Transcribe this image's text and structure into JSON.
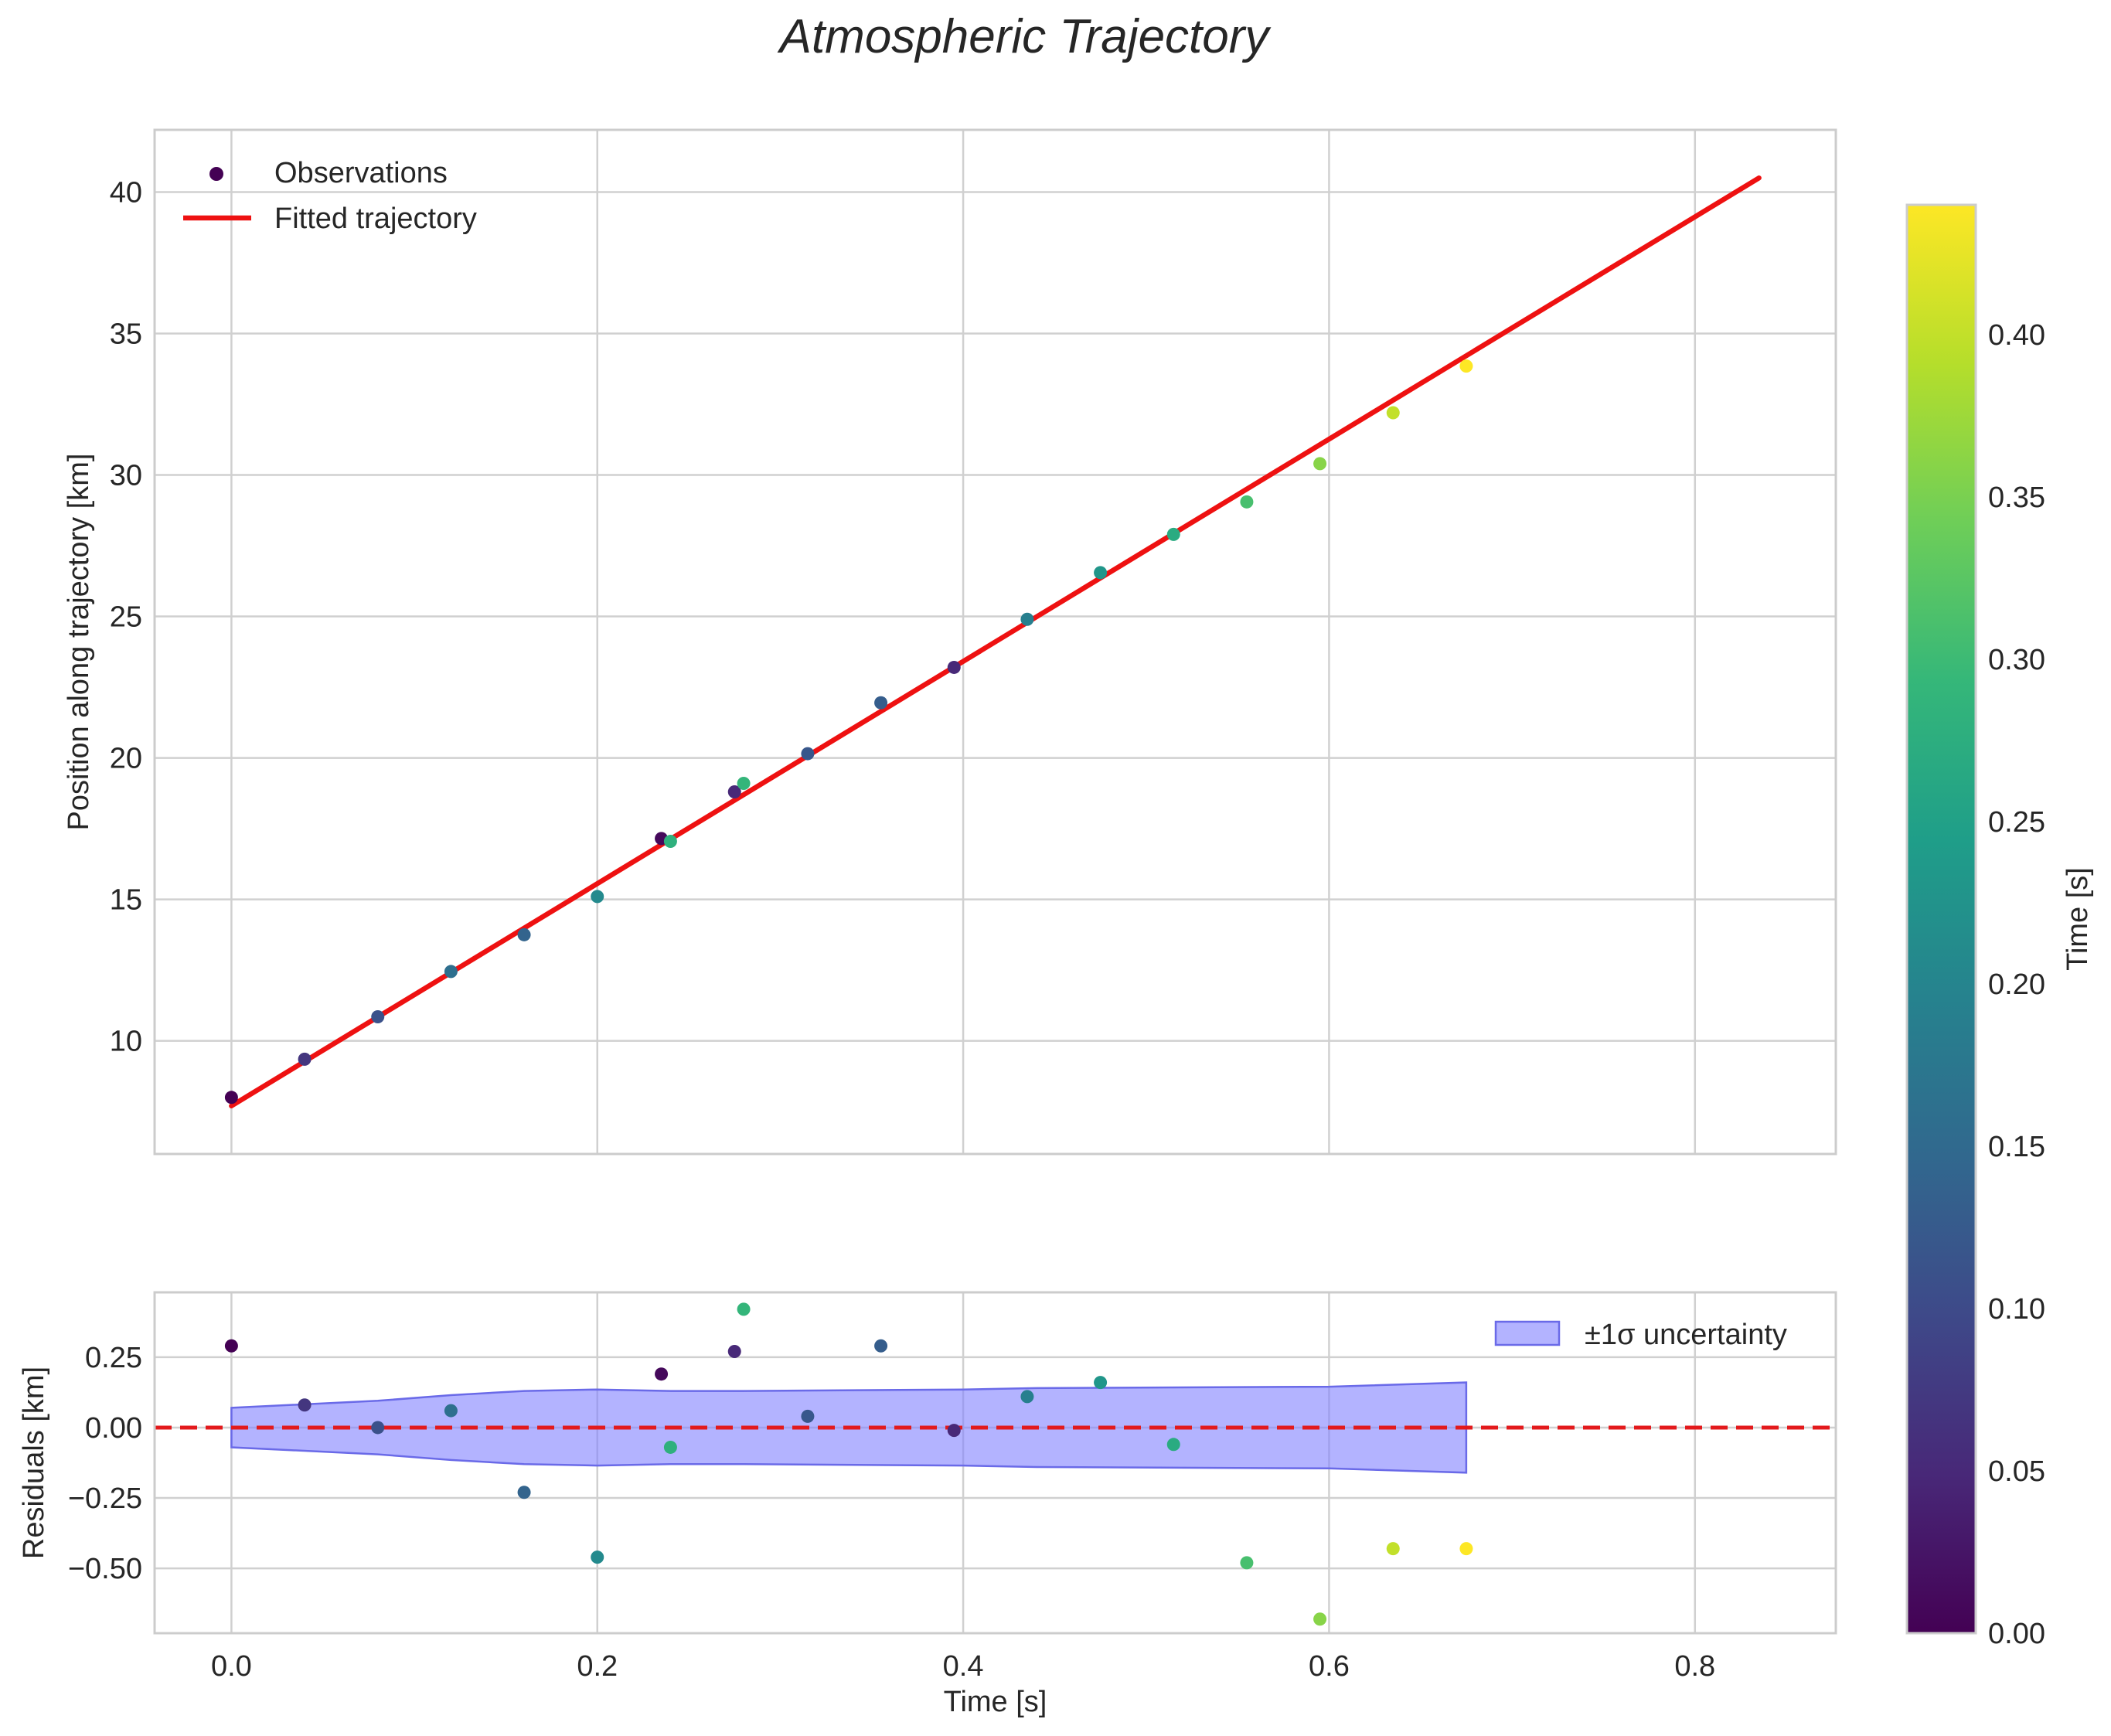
{
  "chart_data": {
    "title": "Atmospheric Trajectory",
    "type": "scatter",
    "main": {
      "ylabel": "Position along trajectory [km]",
      "xlim": [
        -0.042,
        0.877
      ],
      "ylim": [
        6.0,
        42.2
      ],
      "xticks": [
        0.0,
        0.2,
        0.4,
        0.6,
        0.8
      ],
      "yticks": [
        10,
        15,
        20,
        25,
        30,
        35,
        40
      ],
      "ytick_labels": [
        "10",
        "15",
        "20",
        "25",
        "30",
        "35",
        "40"
      ],
      "legend": {
        "position": "top-left",
        "observations_label": "Observations",
        "fit_label": "Fitted trajectory"
      },
      "observations": [
        {
          "t": 0.0,
          "y": 8.0,
          "c": 0.0
        },
        {
          "t": 0.04,
          "y": 9.35,
          "c": 0.07
        },
        {
          "t": 0.08,
          "y": 10.85,
          "c": 0.11
        },
        {
          "t": 0.12,
          "y": 12.45,
          "c": 0.16
        },
        {
          "t": 0.16,
          "y": 13.75,
          "c": 0.14
        },
        {
          "t": 0.2,
          "y": 15.1,
          "c": 0.21
        },
        {
          "t": 0.235,
          "y": 17.15,
          "c": 0.01
        },
        {
          "t": 0.24,
          "y": 17.05,
          "c": 0.28
        },
        {
          "t": 0.275,
          "y": 18.8,
          "c": 0.05
        },
        {
          "t": 0.28,
          "y": 19.1,
          "c": 0.29
        },
        {
          "t": 0.315,
          "y": 20.15,
          "c": 0.12
        },
        {
          "t": 0.355,
          "y": 21.95,
          "c": 0.13
        },
        {
          "t": 0.395,
          "y": 23.2,
          "c": 0.05
        },
        {
          "t": 0.435,
          "y": 24.9,
          "c": 0.19
        },
        {
          "t": 0.475,
          "y": 26.55,
          "c": 0.23
        },
        {
          "t": 0.515,
          "y": 27.9,
          "c": 0.27
        },
        {
          "t": 0.555,
          "y": 29.05,
          "c": 0.31
        },
        {
          "t": 0.595,
          "y": 30.4,
          "c": 0.36
        },
        {
          "t": 0.635,
          "y": 32.2,
          "c": 0.4
        },
        {
          "t": 0.675,
          "y": 33.85,
          "c": 0.44
        }
      ],
      "fit_line": {
        "t": [
          0.0,
          0.835
        ],
        "y": [
          7.7,
          40.5
        ]
      }
    },
    "residuals": {
      "ylabel": "Residuals [km]",
      "xlabel": "Time [s]",
      "xlim": [
        -0.042,
        0.877
      ],
      "ylim": [
        -0.73,
        0.48
      ],
      "yticks": [
        0.25,
        0.0,
        -0.25,
        -0.5
      ],
      "ytick_labels": [
        "0.25",
        "0.00",
        "−0.25",
        "−0.50"
      ],
      "xtick_labels": [
        "0.0",
        "0.2",
        "0.4",
        "0.6",
        "0.8"
      ],
      "legend": {
        "position": "top-right",
        "band_label": "±1σ uncertainty"
      },
      "points": [
        {
          "t": 0.0,
          "r": 0.29,
          "c": 0.0
        },
        {
          "t": 0.04,
          "r": 0.08,
          "c": 0.07
        },
        {
          "t": 0.08,
          "r": 0.0,
          "c": 0.11
        },
        {
          "t": 0.12,
          "r": 0.06,
          "c": 0.16
        },
        {
          "t": 0.16,
          "r": -0.23,
          "c": 0.14
        },
        {
          "t": 0.2,
          "r": -0.46,
          "c": 0.21
        },
        {
          "t": 0.235,
          "r": 0.19,
          "c": 0.01
        },
        {
          "t": 0.24,
          "r": -0.07,
          "c": 0.28
        },
        {
          "t": 0.275,
          "r": 0.27,
          "c": 0.05
        },
        {
          "t": 0.28,
          "r": 0.42,
          "c": 0.29
        },
        {
          "t": 0.315,
          "r": 0.04,
          "c": 0.12
        },
        {
          "t": 0.355,
          "r": 0.29,
          "c": 0.13
        },
        {
          "t": 0.395,
          "r": -0.01,
          "c": 0.05
        },
        {
          "t": 0.435,
          "r": 0.11,
          "c": 0.19
        },
        {
          "t": 0.475,
          "r": 0.16,
          "c": 0.23
        },
        {
          "t": 0.515,
          "r": -0.06,
          "c": 0.27
        },
        {
          "t": 0.555,
          "r": -0.48,
          "c": 0.31
        },
        {
          "t": 0.595,
          "r": -0.68,
          "c": 0.36
        },
        {
          "t": 0.635,
          "r": -0.43,
          "c": 0.4
        },
        {
          "t": 0.675,
          "r": -0.43,
          "c": 0.44
        }
      ],
      "band": {
        "t": [
          0.0,
          0.08,
          0.12,
          0.16,
          0.2,
          0.24,
          0.28,
          0.4,
          0.44,
          0.6,
          0.675
        ],
        "sigma": [
          0.07,
          0.095,
          0.115,
          0.13,
          0.135,
          0.13,
          0.13,
          0.135,
          0.14,
          0.145,
          0.16
        ]
      }
    },
    "colorbar": {
      "label": "Time [s]",
      "range": [
        0.0,
        0.44
      ],
      "ticks": [
        0.0,
        0.05,
        0.1,
        0.15,
        0.2,
        0.25,
        0.3,
        0.35,
        0.4
      ],
      "tick_labels": [
        "0.00",
        "0.05",
        "0.10",
        "0.15",
        "0.20",
        "0.25",
        "0.30",
        "0.35",
        "0.40"
      ],
      "colormap": "viridis"
    },
    "colors": {
      "fit_line": "#ee1111",
      "zero_line": "#e31a1c",
      "band_fill": "#8080ff",
      "band_edge": "#6a6ae8",
      "grid": "#d0d0d0",
      "spine": "#cccccc",
      "viridis": [
        "#440154",
        "#482878",
        "#3e4989",
        "#31688e",
        "#26828e",
        "#1f9e89",
        "#35b779",
        "#6ece58",
        "#b5de2b",
        "#fde725"
      ]
    }
  }
}
